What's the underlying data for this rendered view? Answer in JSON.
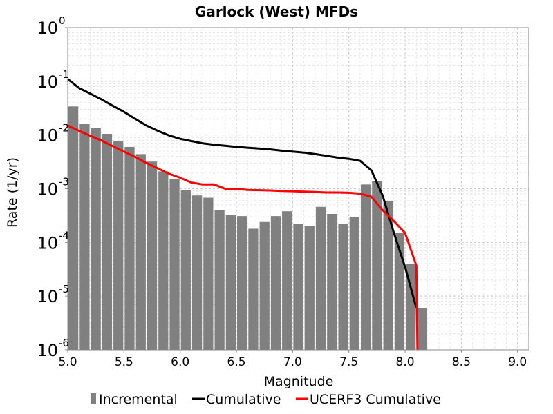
{
  "chart_data": {
    "type": "bar",
    "title": "Garlock (West) MFDs",
    "xlabel": "Magnitude",
    "ylabel": "Rate (1/yr)",
    "xlim": [
      5.0,
      9.1
    ],
    "ylim": [
      1e-06,
      1
    ],
    "yscale": "log",
    "grid": true,
    "legend_position": "bottom",
    "x_ticks": [
      "5.0",
      "5.5",
      "6.0",
      "6.5",
      "7.0",
      "7.5",
      "8.0",
      "8.5",
      "9.0"
    ],
    "y_ticks": [
      {
        "base": "10",
        "exp": "0"
      },
      {
        "base": "10",
        "exp": "-1"
      },
      {
        "base": "10",
        "exp": "-2"
      },
      {
        "base": "10",
        "exp": "-3"
      },
      {
        "base": "10",
        "exp": "-4"
      },
      {
        "base": "10",
        "exp": "-5"
      },
      {
        "base": "10",
        "exp": "-6"
      }
    ],
    "series": [
      {
        "name": "Incremental",
        "type": "bar",
        "color": "#808080",
        "x": [
          5.05,
          5.15,
          5.25,
          5.35,
          5.45,
          5.55,
          5.65,
          5.75,
          5.85,
          5.95,
          6.05,
          6.15,
          6.25,
          6.35,
          6.45,
          6.55,
          6.65,
          6.75,
          6.85,
          6.95,
          7.05,
          7.15,
          7.25,
          7.35,
          7.45,
          7.55,
          7.65,
          7.75,
          7.85,
          7.95,
          8.05,
          8.15
        ],
        "values": [
          0.034,
          0.016,
          0.0135,
          0.0105,
          0.0077,
          0.006,
          0.0044,
          0.0032,
          0.0021,
          0.0015,
          0.00095,
          0.00075,
          0.00068,
          0.0004,
          0.00032,
          0.00031,
          0.00018,
          0.00024,
          0.00031,
          0.00038,
          0.00022,
          0.0002,
          0.00046,
          0.00034,
          0.00022,
          0.0003,
          0.0012,
          0.0014,
          0.00058,
          0.00015,
          4e-05,
          6e-06
        ]
      },
      {
        "name": "Cumulative",
        "type": "line",
        "color": "#000000",
        "x": [
          5.0,
          5.1,
          5.2,
          5.3,
          5.4,
          5.5,
          5.6,
          5.7,
          5.8,
          5.9,
          6.0,
          6.1,
          6.2,
          6.3,
          6.4,
          6.5,
          6.6,
          6.7,
          6.8,
          6.9,
          7.0,
          7.1,
          7.2,
          7.3,
          7.4,
          7.5,
          7.6,
          7.7,
          7.8,
          7.9,
          8.0,
          8.1
        ],
        "values": [
          0.11,
          0.075,
          0.059,
          0.046,
          0.035,
          0.027,
          0.02,
          0.015,
          0.012,
          0.0098,
          0.0085,
          0.0077,
          0.007,
          0.0066,
          0.0063,
          0.006,
          0.0058,
          0.0056,
          0.0054,
          0.0051,
          0.0049,
          0.0047,
          0.0044,
          0.0041,
          0.0038,
          0.0036,
          0.0033,
          0.0022,
          0.00075,
          0.00015,
          3.5e-05,
          6e-06
        ]
      },
      {
        "name": "UCERF3 Cumulative",
        "type": "line",
        "color": "#ff0000",
        "x": [
          5.0,
          5.1,
          5.2,
          5.3,
          5.4,
          5.5,
          5.6,
          5.7,
          5.8,
          5.9,
          6.0,
          6.1,
          6.2,
          6.3,
          6.4,
          6.5,
          6.6,
          6.7,
          6.8,
          6.9,
          7.0,
          7.1,
          7.2,
          7.3,
          7.4,
          7.5,
          7.6,
          7.7,
          7.8,
          7.9,
          8.0,
          8.1,
          8.11
        ],
        "values": [
          0.015,
          0.012,
          0.0097,
          0.0079,
          0.0062,
          0.0049,
          0.0039,
          0.003,
          0.0024,
          0.0019,
          0.0016,
          0.0013,
          0.0012,
          0.0012,
          0.001,
          0.001,
          0.00095,
          0.00094,
          0.00093,
          0.00091,
          0.0009,
          0.00088,
          0.00087,
          0.00085,
          0.00085,
          0.00084,
          0.00081,
          0.00071,
          0.0004,
          0.00025,
          0.00015,
          3.7e-05,
          1e-06
        ]
      }
    ]
  }
}
